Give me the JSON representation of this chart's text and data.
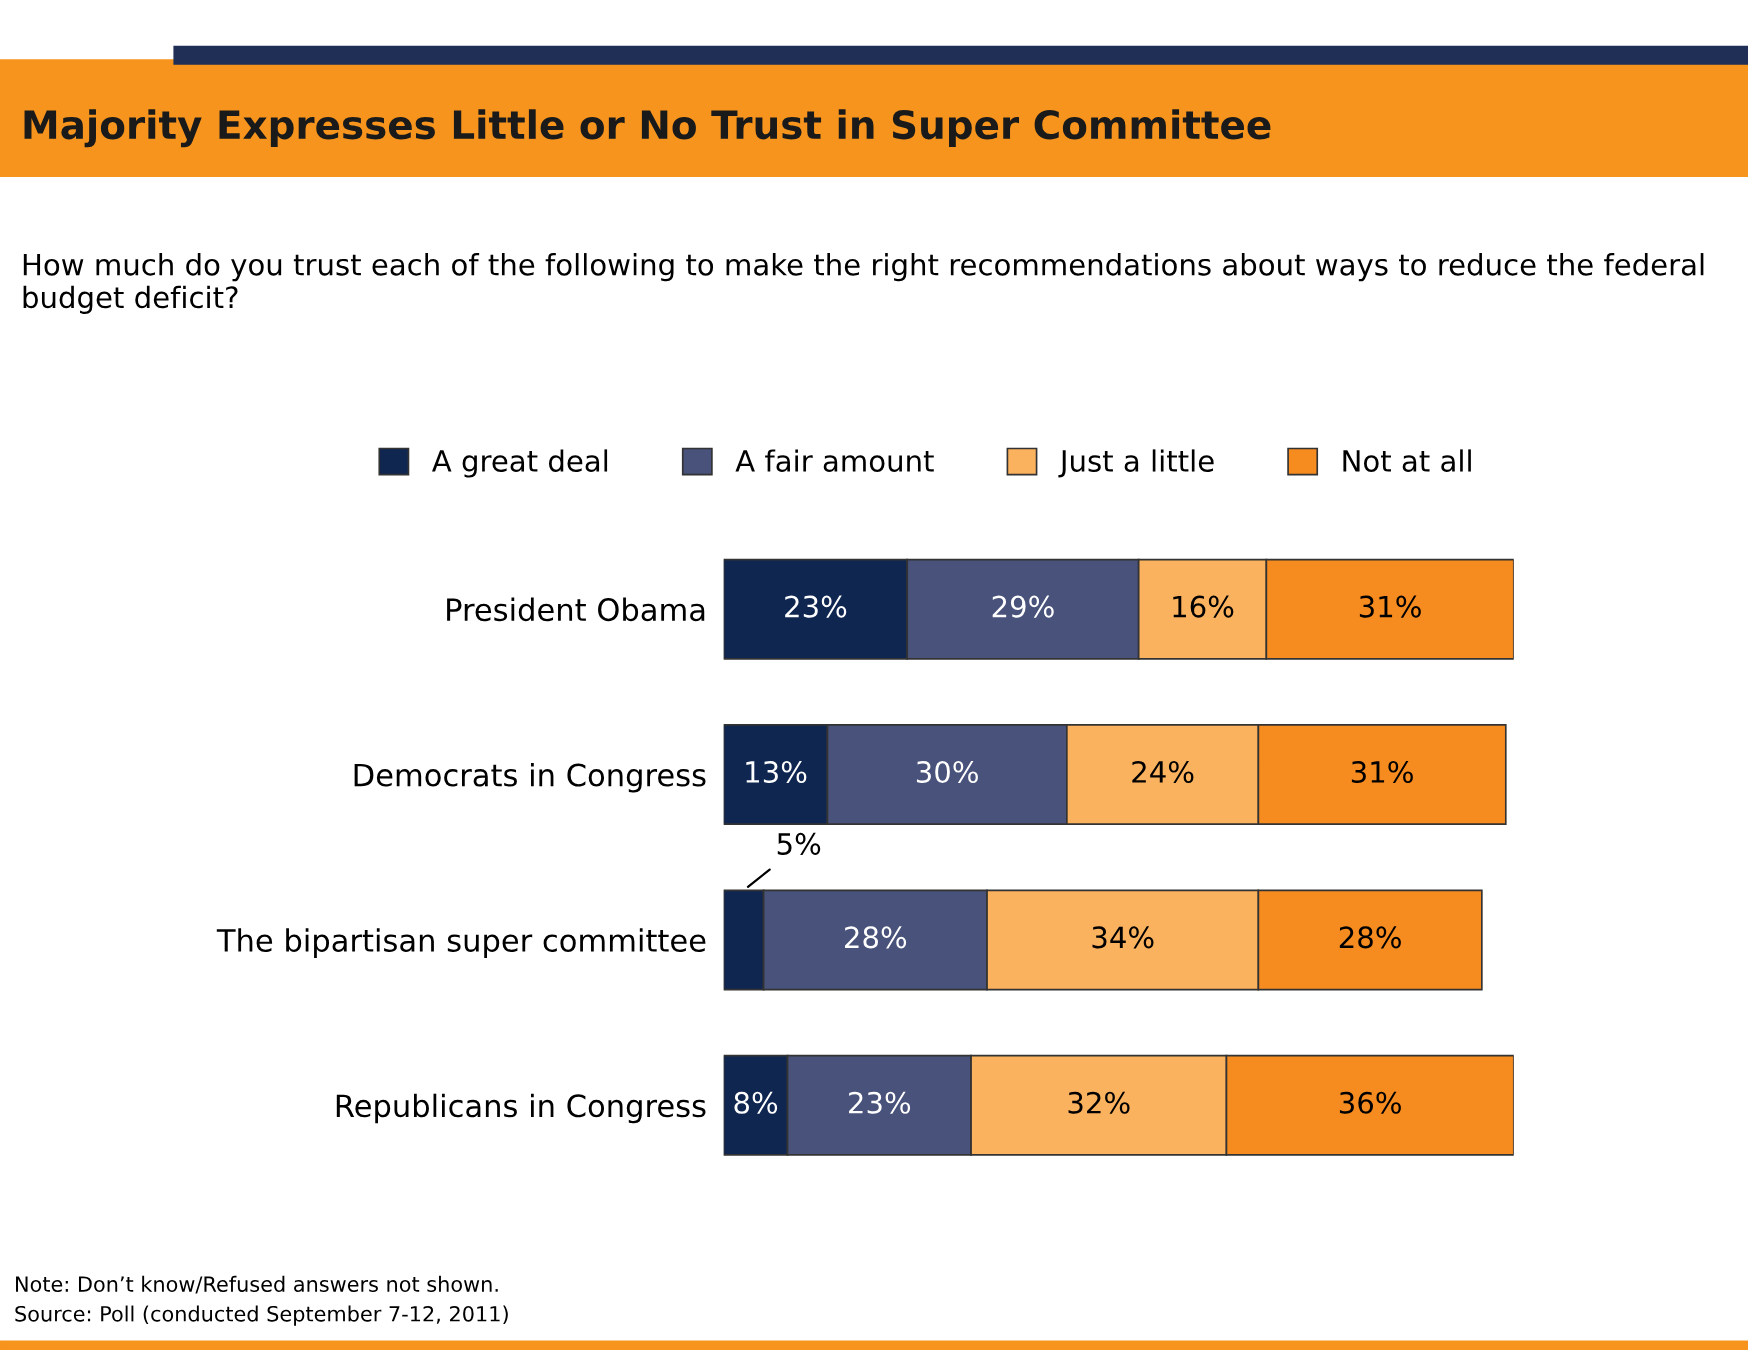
{
  "chart_data": {
    "type": "bar",
    "orientation": "horizontal",
    "stacked": true,
    "title": "Majority Expresses Little or No Trust in Super Committee",
    "subtitle": "How much do you trust each of the following to make the right recommendations about ways to reduce the federal budget deficit?",
    "categories": [
      "President Obama",
      "Democrats in Congress",
      "The bipartisan super committee",
      "Republicans in Congress"
    ],
    "series": [
      {
        "name": "A great deal",
        "color": "#0f2650",
        "values": [
          23,
          13,
          5,
          8
        ],
        "value_labels": [
          "23%",
          "13%",
          "5%",
          "8%"
        ]
      },
      {
        "name": "A fair amount",
        "color": "#48527a",
        "values": [
          29,
          30,
          28,
          23
        ],
        "value_labels": [
          "29%",
          "30%",
          "28%",
          "23%"
        ]
      },
      {
        "name": "Just a little",
        "color": "#fbb25e",
        "values": [
          16,
          24,
          34,
          32
        ],
        "value_labels": [
          "16%",
          "24%",
          "34%",
          "32%"
        ]
      },
      {
        "name": "Not at all",
        "color": "#f68b1f",
        "values": [
          31,
          31,
          28,
          36
        ],
        "value_labels": [
          "31%",
          "31%",
          "28%",
          "36%"
        ]
      }
    ],
    "legend": "top",
    "grid": false,
    "annotations": [
      "Note: Don’t know/Refused answers not shown.",
      "Source: Poll (conducted September 7-12, 2011)"
    ]
  }
}
